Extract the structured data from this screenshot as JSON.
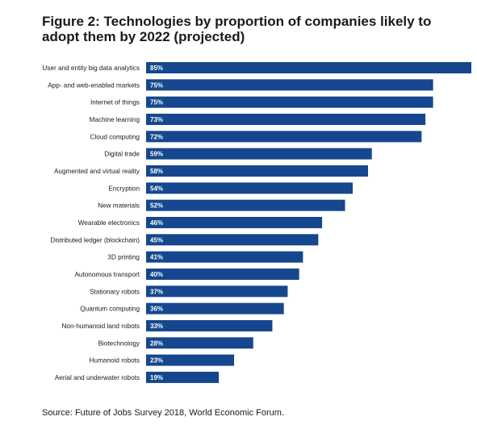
{
  "chart_data": {
    "type": "bar",
    "orientation": "horizontal",
    "title": "Figure 2: Technologies by proportion of companies likely to adopt them by 2022 (projected)",
    "categories": [
      "User and entity big data analytics",
      "App- and web-enabled markets",
      "Internet of things",
      "Machine learning",
      "Cloud computing",
      "Digital trade",
      "Augmented and virtual reality",
      "Encryption",
      "New materials",
      "Wearable electronics",
      "Distributed ledger (blockchain)",
      "3D printing",
      "Autonomous transport",
      "Stationary robots",
      "Quantum computing",
      "Non-humanoid land robots",
      "Biotechnology",
      "Humanoid robots",
      "Aerial and underwater robots"
    ],
    "values": [
      85,
      75,
      75,
      73,
      72,
      59,
      58,
      54,
      52,
      46,
      45,
      41,
      40,
      37,
      36,
      33,
      28,
      23,
      19
    ],
    "value_labels": [
      "85%",
      "75%",
      "75%",
      "73%",
      "72%",
      "59%",
      "58%",
      "54%",
      "52%",
      "46%",
      "45%",
      "41%",
      "40%",
      "37%",
      "36%",
      "33%",
      "28%",
      "23%",
      "19%"
    ],
    "xlim": [
      0,
      85
    ],
    "bar_color": "#16478e",
    "grid": false,
    "legend": "none"
  },
  "source": "Source: Future of Jobs Survey 2018, World Economic Forum."
}
